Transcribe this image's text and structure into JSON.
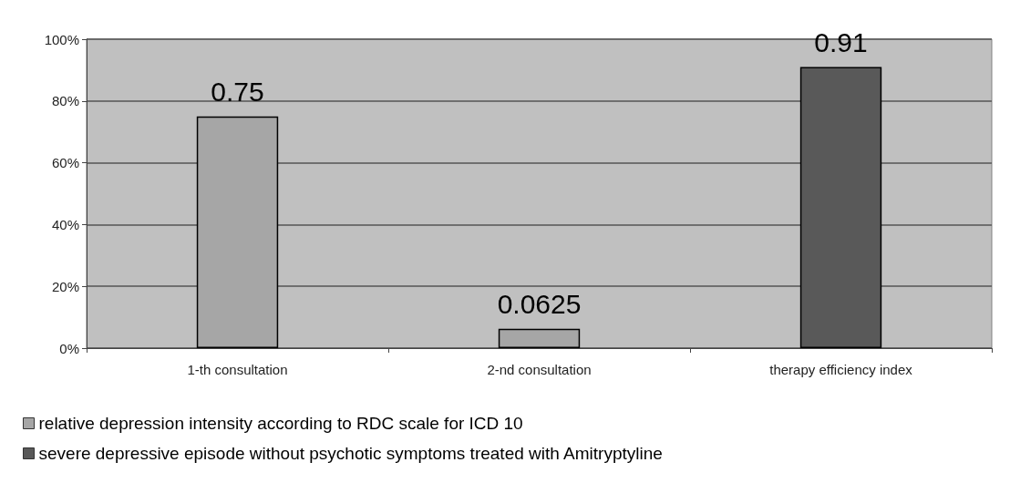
{
  "chart_data": {
    "type": "bar",
    "categories": [
      "1-th consultation",
      "2-nd consultation",
      "therapy efficiency index"
    ],
    "series": [
      {
        "name": "relative depression intensity according to RDC scale for ICD 10",
        "color": "#a6a6a6",
        "values": [
          0.75,
          0.0625,
          null
        ]
      },
      {
        "name": "severe depressive episode without psychotic symptoms treated with Amitryptyline",
        "color": "#595959",
        "values": [
          null,
          null,
          0.91
        ]
      }
    ],
    "ylim": [
      0,
      1
    ],
    "yticks": [
      {
        "value": 0,
        "label": "0%"
      },
      {
        "value": 0.2,
        "label": "20%"
      },
      {
        "value": 0.4,
        "label": "40%"
      },
      {
        "value": 0.6,
        "label": "60%"
      },
      {
        "value": 0.8,
        "label": "80%"
      },
      {
        "value": 1,
        "label": "100%"
      }
    ],
    "grid": "y",
    "legend": "bottom left",
    "data_labels": true
  }
}
